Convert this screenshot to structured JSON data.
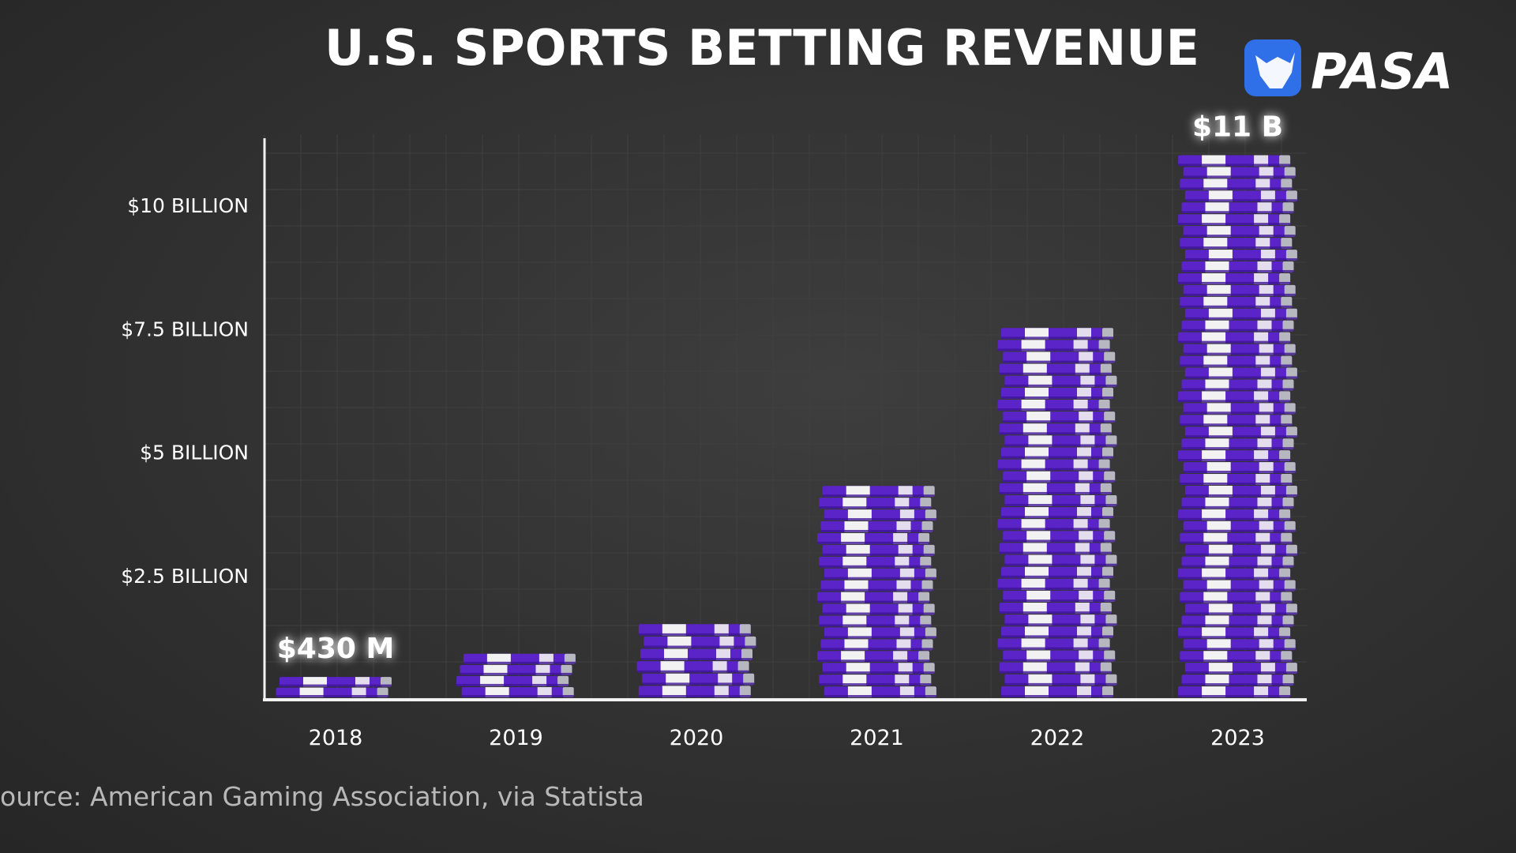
{
  "colors": {
    "background": "#333333",
    "chip_purple": "#5a24c9",
    "chip_purple_dark": "#3d1496",
    "chip_white": "#f2f2f2",
    "chip_edge": "#b7b7c0",
    "grid": "#3f3f3f",
    "axis": "#f2f2f2",
    "text": "#ffffff",
    "source_text": "#b8b8b8",
    "logo_blue": "#2f6fe8"
  },
  "brand": {
    "name": "PASA",
    "logo_icon": "bull-head-icon"
  },
  "source": {
    "text": "ource: American Gaming Association, via Statista"
  },
  "chart_data": {
    "type": "bar",
    "title": "U.S. SPORTS BETTING REVENUE",
    "xlabel": "",
    "ylabel": "",
    "categories": [
      "2018",
      "2019",
      "2020",
      "2021",
      "2022",
      "2023"
    ],
    "values": [
      0.43,
      0.9,
      1.5,
      4.3,
      7.5,
      11.0
    ],
    "value_unit": "billion USD",
    "ylim": [
      0,
      11.4
    ],
    "yticks": [
      2.5,
      5,
      7.5,
      10
    ],
    "ytick_labels": [
      "$2.5 BILLION",
      "$5 BILLION",
      "$7.5 BILLION",
      "$10 BILLION"
    ],
    "data_labels": [
      {
        "category": "2018",
        "text": "$430 M"
      },
      {
        "category": "2023",
        "text": "$11 B"
      }
    ],
    "grid": true,
    "legend": "none",
    "bar_style": "stacked-poker-chips"
  }
}
